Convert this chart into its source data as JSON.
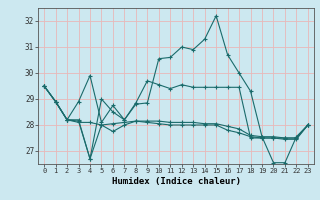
{
  "xlabel": "Humidex (Indice chaleur)",
  "bg_color": "#cce8f0",
  "grid_color": "#e8b8b8",
  "line_color": "#1a6b6b",
  "x": [
    0,
    1,
    2,
    3,
    4,
    5,
    6,
    7,
    8,
    9,
    10,
    11,
    12,
    13,
    14,
    15,
    16,
    17,
    18,
    19,
    20,
    21,
    22,
    23
  ],
  "ylim": [
    26.5,
    32.5
  ],
  "yticks": [
    27,
    28,
    29,
    30,
    31,
    32
  ],
  "xticks": [
    0,
    1,
    2,
    3,
    4,
    5,
    6,
    7,
    8,
    9,
    10,
    11,
    12,
    13,
    14,
    15,
    16,
    17,
    18,
    19,
    20,
    21,
    22,
    23
  ],
  "s1": [
    29.5,
    28.9,
    28.2,
    28.9,
    29.9,
    28.1,
    28.75,
    28.2,
    28.85,
    29.7,
    29.55,
    29.4,
    29.55,
    29.45,
    29.45,
    29.45,
    29.45,
    29.45,
    27.5,
    27.5,
    27.5,
    27.5,
    27.5,
    28.0
  ],
  "s2": [
    29.5,
    28.9,
    28.2,
    28.2,
    26.7,
    29.0,
    28.5,
    28.2,
    28.8,
    28.85,
    30.55,
    30.6,
    31.0,
    30.9,
    31.3,
    32.2,
    30.7,
    30.0,
    29.3,
    27.55,
    26.55,
    26.55,
    27.55,
    28.0
  ],
  "s3": [
    29.5,
    28.9,
    28.2,
    28.1,
    28.1,
    28.0,
    28.05,
    28.1,
    28.15,
    28.15,
    28.15,
    28.1,
    28.1,
    28.1,
    28.05,
    28.05,
    27.95,
    27.85,
    27.6,
    27.55,
    27.55,
    27.5,
    27.5,
    28.0
  ],
  "s4": [
    29.5,
    28.9,
    28.2,
    28.15,
    26.7,
    28.0,
    27.75,
    28.0,
    28.15,
    28.1,
    28.05,
    28.0,
    28.0,
    28.0,
    28.0,
    28.0,
    27.8,
    27.7,
    27.55,
    27.5,
    27.5,
    27.45,
    27.45,
    28.0
  ]
}
